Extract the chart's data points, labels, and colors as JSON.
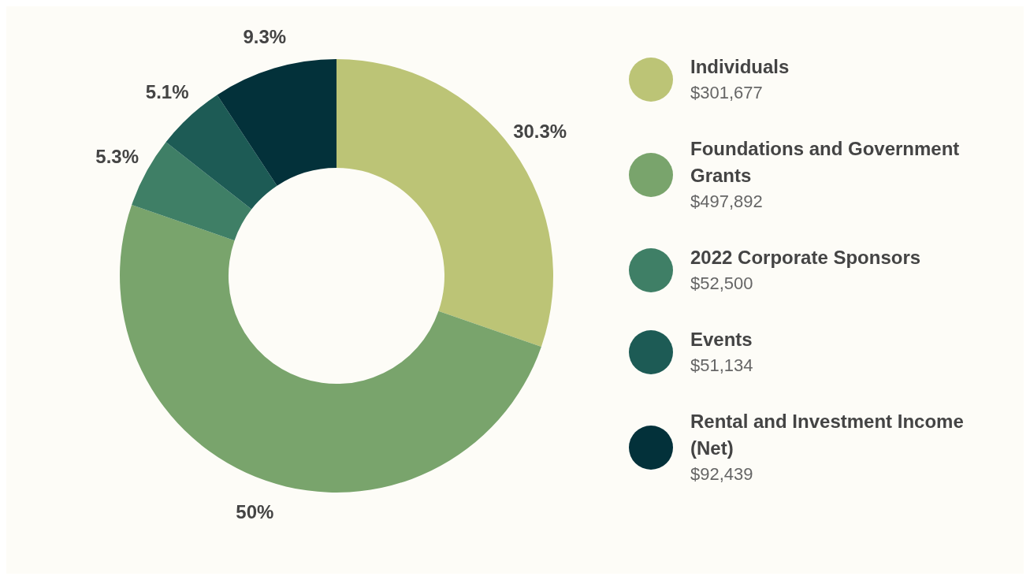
{
  "chart_data": {
    "type": "donut",
    "categories": [
      "Individuals",
      "Foundations and Government Grants",
      "2022 Corporate Sponsors",
      "Events",
      "Rental and Investment Income (Net)"
    ],
    "values": [
      301677,
      497892,
      52500,
      51134,
      92439
    ],
    "value_labels": [
      "$301,677",
      "$497,892",
      "$52,500",
      "$51,134",
      "$92,439"
    ],
    "colors": [
      "#bcc476",
      "#79a46c",
      "#3f7f66",
      "#1d5b55",
      "#03313a"
    ],
    "annotations": [
      {
        "text": "30.3%",
        "x": "Individuals"
      },
      {
        "text": "50%",
        "x": "Foundations and Government Grants"
      },
      {
        "text": "5.3%",
        "x": "2022 Corporate Sponsors"
      },
      {
        "text": "5.1%",
        "x": "Events"
      },
      {
        "text": "9.3%",
        "x": "Rental and Investment Income (Net)"
      }
    ],
    "legend": "right"
  }
}
